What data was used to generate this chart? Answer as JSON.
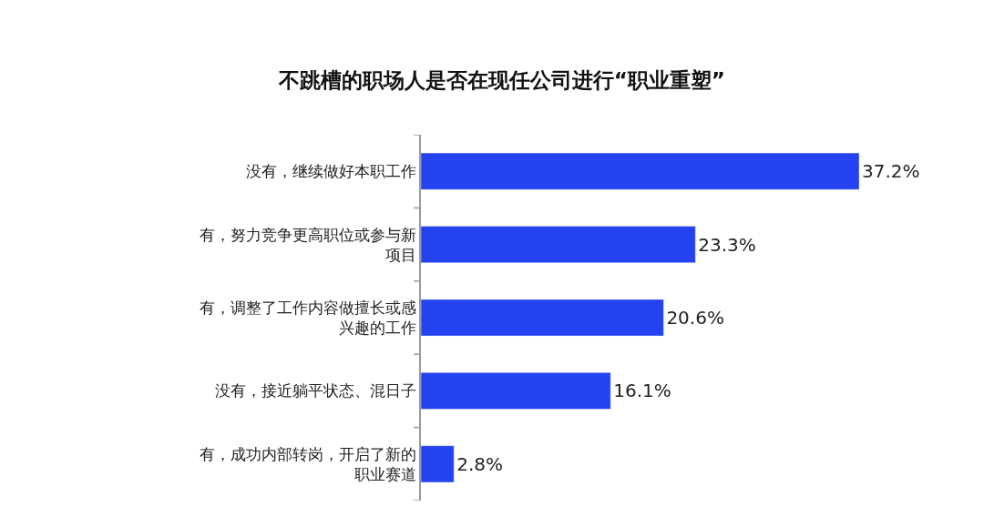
{
  "chart_data": {
    "type": "bar",
    "orientation": "horizontal",
    "title": "不跳槽的职场人是否在现任公司进行“职业重塑”",
    "categories": [
      "没有，继续做好本职工作",
      "有，努力竞争更高职位或参与新项目",
      "有，调整了工作内容做擅长或感兴趣的工作",
      "没有，接近躺平状态、混日子",
      "有，成功内部转岗，开启了新的职业赛道"
    ],
    "values": [
      37.2,
      23.3,
      20.6,
      16.1,
      2.8
    ],
    "value_labels": [
      "37.2%",
      "23.3%",
      "20.6%",
      "16.1%",
      "2.8%"
    ],
    "color": "#2442f0",
    "tick_labels": "y"
  }
}
